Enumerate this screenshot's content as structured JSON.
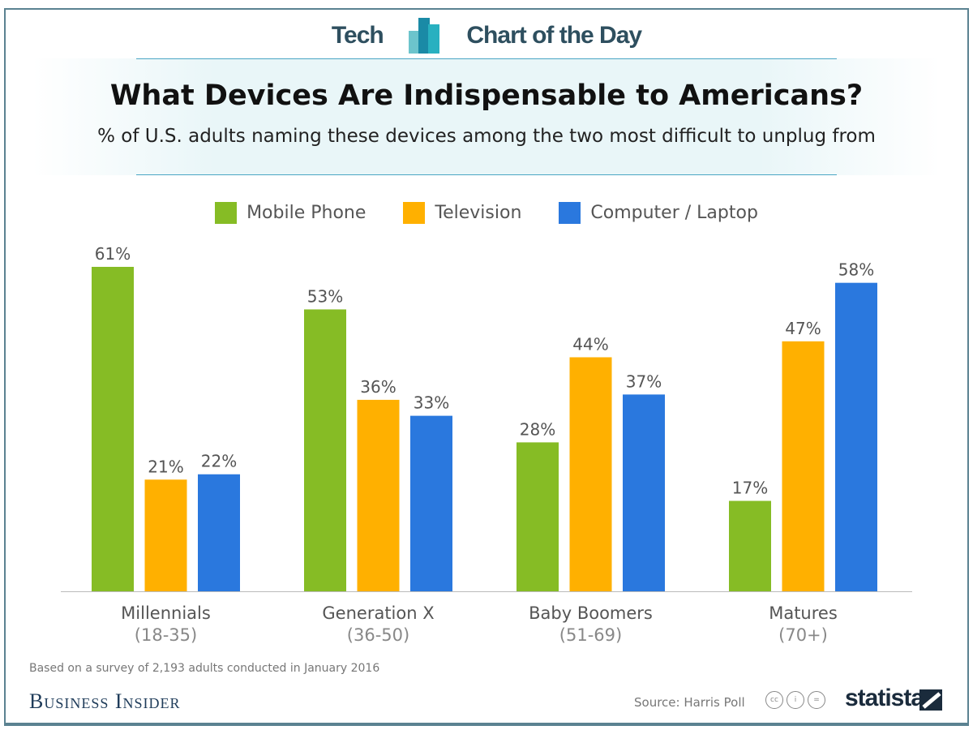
{
  "header": {
    "left": "Tech",
    "right": "Chart of the Day"
  },
  "colors": {
    "mobile": "#86bc25",
    "tv": "#ffb000",
    "computer": "#2a78de",
    "frame": "#5b8291"
  },
  "chart_data": {
    "type": "bar",
    "title": "What Devices Are Indispensable to Americans?",
    "subtitle": "% of U.S. adults naming these devices among the two most difficult to unplug from",
    "categories": [
      "Millennials",
      "Generation X",
      "Baby Boomers",
      "Matures"
    ],
    "category_sublabels": [
      "(18-35)",
      "(36-50)",
      "(51-69)",
      "(70+)"
    ],
    "series": [
      {
        "name": "Mobile Phone",
        "values": [
          61,
          53,
          28,
          17
        ]
      },
      {
        "name": "Television",
        "values": [
          21,
          36,
          44,
          47
        ]
      },
      {
        "name": "Computer / Laptop",
        "values": [
          22,
          33,
          37,
          58
        ]
      }
    ],
    "value_suffix": "%",
    "ylim": [
      0,
      61
    ],
    "grid": false,
    "legend": "top"
  },
  "footer": {
    "note": "Based on a survey of 2,193 adults conducted in January 2016",
    "publisher": "Business Insider",
    "source": "Source: Harris Poll",
    "statista": "statista"
  }
}
